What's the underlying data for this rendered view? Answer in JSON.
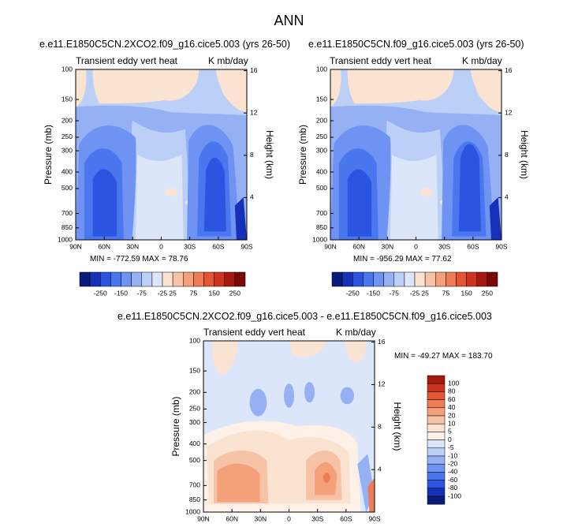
{
  "figure_title": "ANN",
  "panels": [
    {
      "case_title": "e.e11.E1850C5CN.2XCO2.f09_g16.cice5.003 (yrs 26-50)",
      "variable_label": "Transient eddy vert heat",
      "units_label": "K mb/day",
      "ylabel_left": "Pressure (mb)",
      "ylabel_right": "Height (km)",
      "stats": "MIN = -772.59  MAX = 78.76"
    },
    {
      "case_title": "e.e11.E1850C5CN.f09_g16.cice5.003 (yrs 26-50)",
      "variable_label": "Transient eddy vert heat",
      "units_label": "K mb/day",
      "ylabel_left": "Pressure (mb)",
      "ylabel_right": "Height (km)",
      "stats": "MIN = -956.29  MAX = 77.62"
    },
    {
      "case_title": "e.e11.E1850C5CN.2XCO2.f09_g16.cice5.003 - e.e11.E1850C5CN.f09_g16.cice5.003",
      "variable_label": "Transient eddy vert heat",
      "units_label": "K mb/day",
      "ylabel_left": "Pressure (mb)",
      "ylabel_right": "Height (km)",
      "stats": "MIN = -49.27  MAX = 183.70"
    }
  ],
  "colorbar_main": {
    "tick_labels": [
      "-250",
      "-150",
      "-75",
      "-25",
      "25",
      "75",
      "150",
      "250"
    ],
    "colors": [
      "#0a1a7a",
      "#1630b8",
      "#2b55e0",
      "#4a77ee",
      "#6f93f2",
      "#95b1f4",
      "#bcd0f7",
      "#dbe6fa",
      "#fbe3d1",
      "#f7c3a6",
      "#f3a07b",
      "#ee7c55",
      "#e45533",
      "#cd3420",
      "#a6190f",
      "#7a0a08"
    ]
  },
  "colorbar_diff": {
    "tick_labels": [
      "100",
      "80",
      "60",
      "40",
      "20",
      "10",
      "5",
      "0",
      "-5",
      "-10",
      "-20",
      "-40",
      "-60",
      "-80",
      "-100"
    ],
    "colors": [
      "#a6190f",
      "#cd3420",
      "#e45533",
      "#ee7c55",
      "#f3a07b",
      "#f7c3a6",
      "#fbe3d1",
      "#fdf0e6",
      "#dbe6fa",
      "#bcd0f7",
      "#95b1f4",
      "#6f93f2",
      "#4a77ee",
      "#2b55e0",
      "#1630b8",
      "#0a1a7a"
    ]
  },
  "chart_data": [
    {
      "type": "heatmap",
      "title": "e.e11.E1850C5CN.2XCO2.f09_g16.cice5.003 (yrs 26-50)",
      "subtitle_left": "Transient eddy vert heat",
      "subtitle_right": "K mb/day",
      "ylabel": "Pressure (mb)",
      "ylabel_right": "Height (km)",
      "x_ticks": [
        "90N",
        "60N",
        "30N",
        "0",
        "30S",
        "60S",
        "90S"
      ],
      "y_ticks": [
        "100",
        "150",
        "200",
        "250",
        "300",
        "400",
        "500",
        "700",
        "850",
        "1000"
      ],
      "y_scale": "log",
      "ylim": [
        1000,
        100
      ],
      "y_right_ticks": [
        "4",
        "8",
        "12",
        "16"
      ],
      "min": -772.59,
      "max": 78.76
    },
    {
      "type": "heatmap",
      "title": "e.e11.E1850C5CN.f09_g16.cice5.003 (yrs 26-50)",
      "subtitle_left": "Transient eddy vert heat",
      "subtitle_right": "K mb/day",
      "ylabel": "Pressure (mb)",
      "ylabel_right": "Height (km)",
      "x_ticks": [
        "90N",
        "60N",
        "30N",
        "0",
        "30S",
        "60S",
        "90S"
      ],
      "y_ticks": [
        "100",
        "150",
        "200",
        "250",
        "300",
        "400",
        "500",
        "700",
        "850",
        "1000"
      ],
      "y_scale": "log",
      "ylim": [
        1000,
        100
      ],
      "y_right_ticks": [
        "4",
        "8",
        "12",
        "16"
      ],
      "min": -956.29,
      "max": 77.62
    },
    {
      "type": "heatmap",
      "title": "e.e11.E1850C5CN.2XCO2.f09_g16.cice5.003 - e.e11.E1850C5CN.f09_g16.cice5.003",
      "subtitle_left": "Transient eddy vert heat",
      "subtitle_right": "K mb/day",
      "ylabel": "Pressure (mb)",
      "ylabel_right": "Height (km)",
      "x_ticks": [
        "90N",
        "60N",
        "30N",
        "0",
        "30S",
        "60S",
        "90S"
      ],
      "y_ticks": [
        "100",
        "150",
        "200",
        "250",
        "300",
        "400",
        "500",
        "700",
        "850",
        "1000"
      ],
      "y_scale": "log",
      "ylim": [
        1000,
        100
      ],
      "y_right_ticks": [
        "4",
        "8",
        "12",
        "16"
      ],
      "min": -49.27,
      "max": 183.7
    }
  ]
}
